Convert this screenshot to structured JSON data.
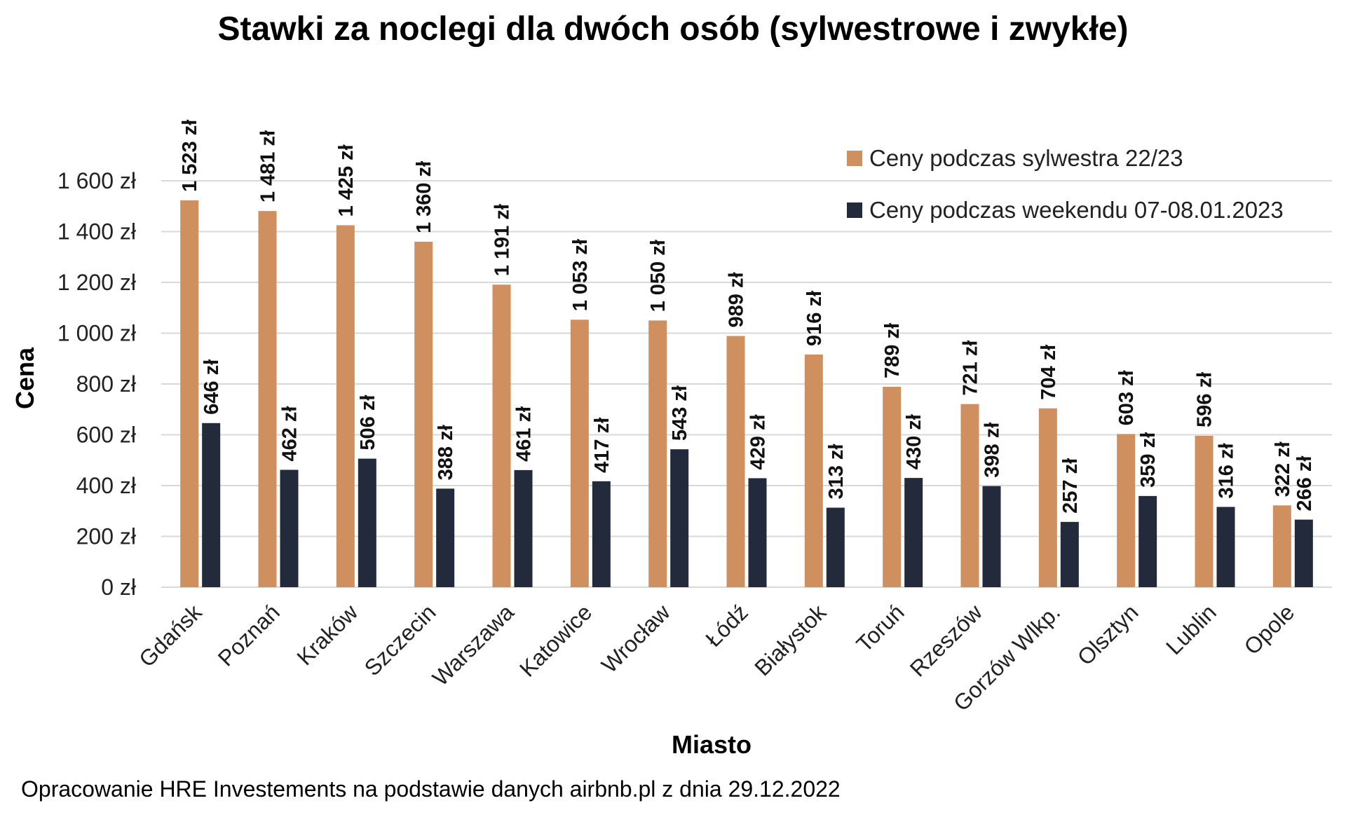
{
  "chart_data": {
    "type": "bar",
    "title": "Stawki za noclegi dla dwóch osób (sylwestrowe i zwykłe)",
    "xlabel": "Miasto",
    "ylabel": "Cena",
    "ylim": [
      0,
      1600
    ],
    "ytick_step": 200,
    "ytick_labels": [
      "0 zł",
      "200 zł",
      "400 zł",
      "600 zł",
      "800 zł",
      "1 000 zł",
      "1 200 zł",
      "1 400 zł",
      "1 600 zł"
    ],
    "grid": true,
    "legend_position": "top-right",
    "categories": [
      "Gdańsk",
      "Poznań",
      "Kraków",
      "Szczecin",
      "Warszawa",
      "Katowice",
      "Wrocław",
      "Łódź",
      "Białystok",
      "Toruń",
      "Rzeszów",
      "Gorzów Wlkp.",
      "Olsztyn",
      "Lublin",
      "Opole"
    ],
    "series": [
      {
        "name": "Ceny podczas sylwestra 22/23",
        "color": "#D08F5F",
        "values": [
          1523,
          1481,
          1425,
          1360,
          1191,
          1053,
          1050,
          989,
          916,
          789,
          721,
          704,
          603,
          596,
          322
        ],
        "labels": [
          "1 523 zł",
          "1 481 zł",
          "1 425 zł",
          "1 360 zł",
          "1 191 zł",
          "1 053 zł",
          "1 050 zł",
          "989 zł",
          "916 zł",
          "789 zł",
          "721 zł",
          "704 zł",
          "603 zł",
          "596 zł",
          "322 zł"
        ]
      },
      {
        "name": "Ceny podczas weekendu 07-08.01.2023",
        "color": "#232A3B",
        "values": [
          646,
          462,
          506,
          388,
          461,
          417,
          543,
          429,
          313,
          430,
          398,
          257,
          359,
          316,
          266
        ],
        "labels": [
          "646 zł",
          "462 zł",
          "506 zł",
          "388 zł",
          "461 zł",
          "417 zł",
          "543 zł",
          "429 zł",
          "313 zł",
          "430 zł",
          "398 zł",
          "257 zł",
          "359 zł",
          "316 zł",
          "266 zł"
        ]
      }
    ]
  },
  "footnote": "Opracowanie HRE Investements na podstawie danych airbnb.pl z dnia 29.12.2022"
}
